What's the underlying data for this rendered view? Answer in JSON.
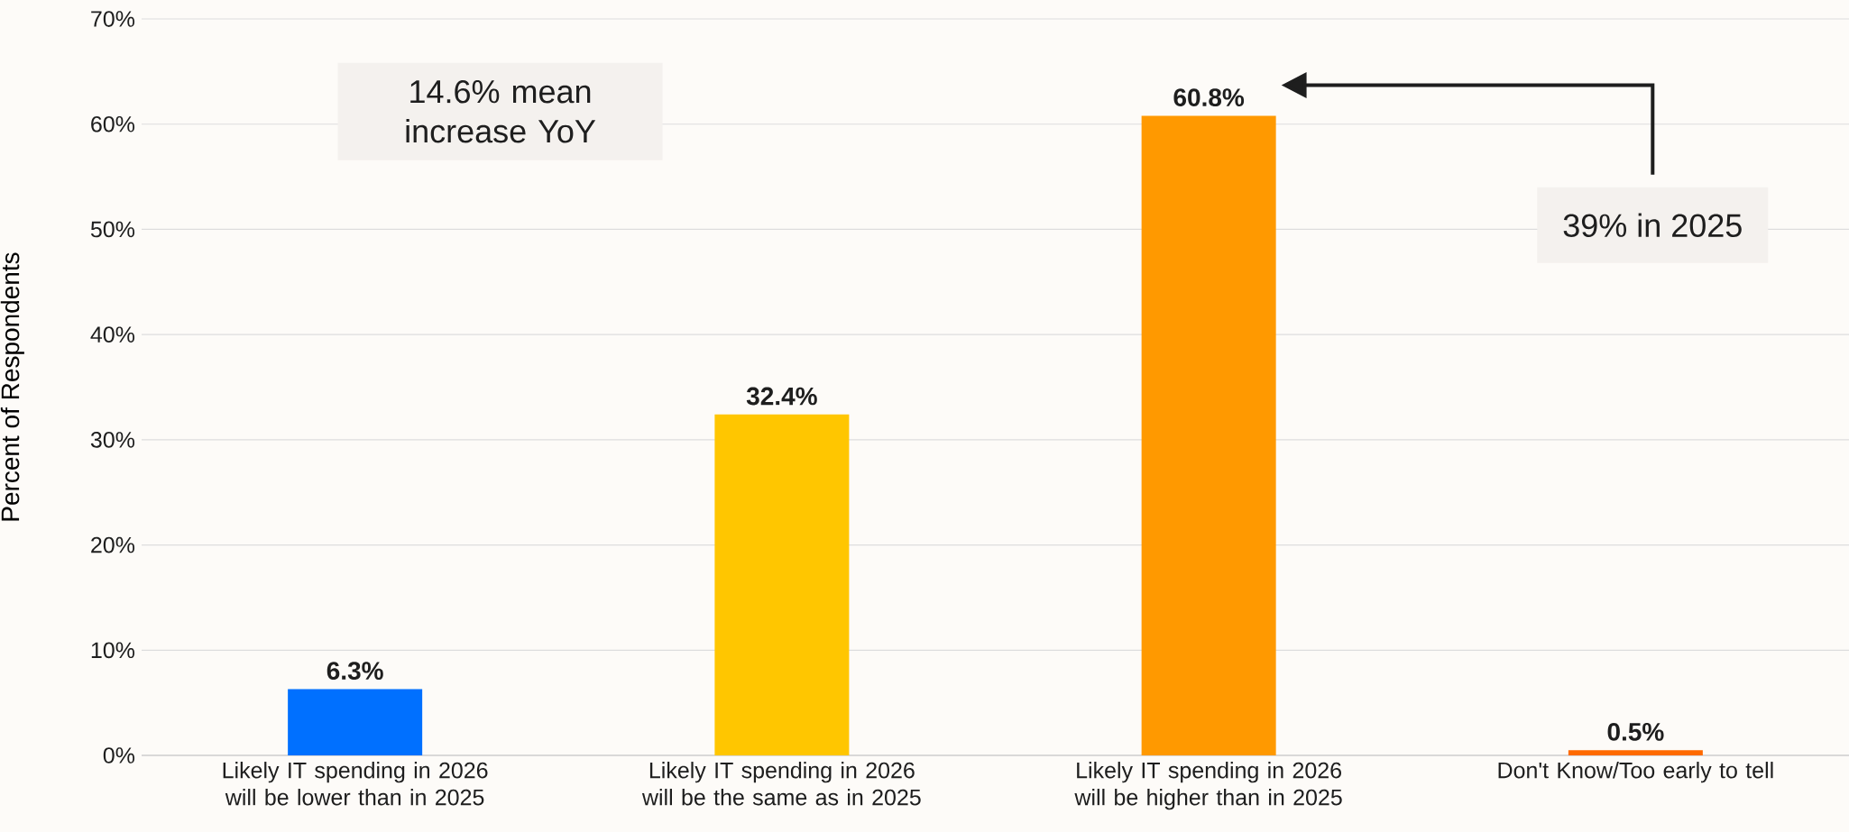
{
  "chart_data": {
    "type": "bar",
    "ylabel": "Percent of Respondents",
    "categories": [
      "Likely IT spending in 2026 will be lower than in 2025",
      "Likely IT spending in 2026 will be the same as in 2025",
      "Likely IT spending in 2026 will be higher than in 2025",
      "Don't Know/Too early to tell"
    ],
    "values": [
      6.3,
      32.4,
      60.8,
      0.5
    ],
    "colors": [
      "#0070ff",
      "#ffc600",
      "#ff9900",
      "#ff6a00"
    ],
    "value_labels": [
      "6.3%",
      "32.4%",
      "60.8%",
      "0.5%"
    ],
    "ylim": [
      0,
      70
    ],
    "yticks": [
      {
        "value": 0,
        "label": "0%"
      },
      {
        "value": 10,
        "label": "10%"
      },
      {
        "value": 20,
        "label": "20%"
      },
      {
        "value": 30,
        "label": "30%"
      },
      {
        "value": 40,
        "label": "40%"
      },
      {
        "value": 50,
        "label": "50%"
      },
      {
        "value": 60,
        "label": "60%"
      },
      {
        "value": 70,
        "label": "70%"
      }
    ],
    "grid": "y",
    "annotations": [
      "14.6% mean increase YoY",
      "39% in 2025"
    ]
  }
}
